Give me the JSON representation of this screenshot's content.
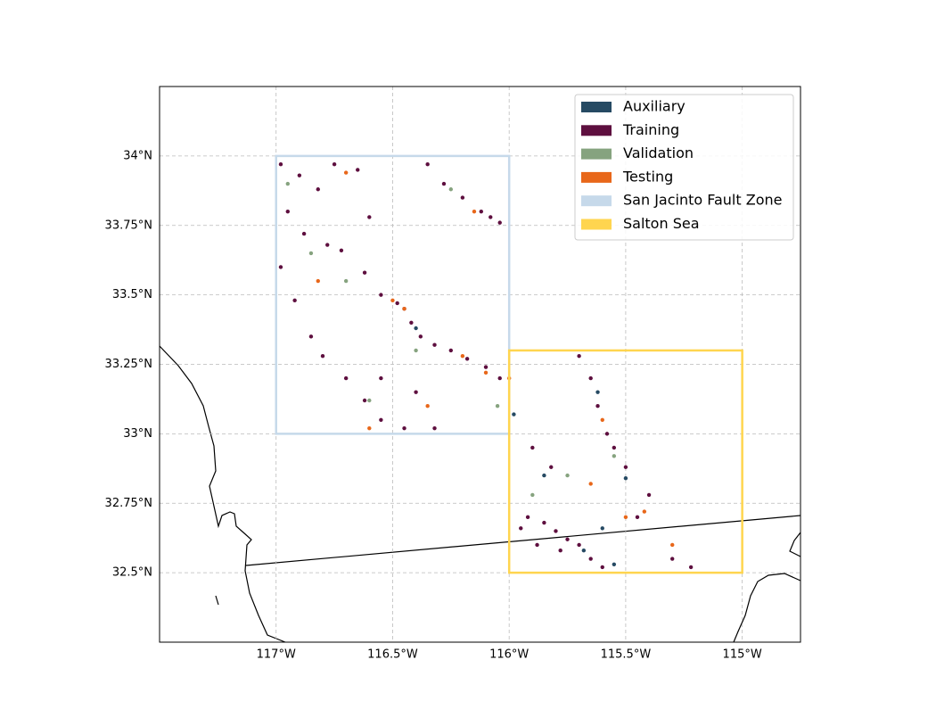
{
  "chart_data": {
    "type": "scatter",
    "xlim": [
      -117.5,
      -114.75
    ],
    "ylim": [
      32.25,
      34.25
    ],
    "grid": true,
    "legend": "upper right",
    "xticks": [
      {
        "value": -117,
        "label": "117°W"
      },
      {
        "value": -116.5,
        "label": "116.5°W"
      },
      {
        "value": -116,
        "label": "116°W"
      },
      {
        "value": -115.5,
        "label": "115.5°W"
      },
      {
        "value": -115,
        "label": "115°W"
      }
    ],
    "yticks": [
      {
        "value": 32.5,
        "label": "32.5°N"
      },
      {
        "value": 32.75,
        "label": "32.75°N"
      },
      {
        "value": 33,
        "label": "33°N"
      },
      {
        "value": 33.25,
        "label": "33.25°N"
      },
      {
        "value": 33.5,
        "label": "33.5°N"
      },
      {
        "value": 33.75,
        "label": "33.75°N"
      },
      {
        "value": 34,
        "label": "34°N"
      }
    ],
    "series": [
      {
        "name": "Auxiliary",
        "color": "#264a63",
        "x": [
          -115.98,
          -115.85,
          -115.68,
          -115.6,
          -115.5,
          -116.4,
          -115.62,
          -115.55
        ],
        "y": [
          33.07,
          32.85,
          32.58,
          32.66,
          32.84,
          33.38,
          33.15,
          32.53
        ]
      },
      {
        "name": "Training",
        "color": "#5e0f3f",
        "x": [
          -116.98,
          -116.9,
          -116.82,
          -116.75,
          -116.65,
          -116.95,
          -116.88,
          -116.78,
          -116.72,
          -116.62,
          -116.55,
          -116.48,
          -116.45,
          -116.42,
          -116.38,
          -116.32,
          -116.25,
          -116.18,
          -116.1,
          -116.04,
          -116.92,
          -116.85,
          -116.8,
          -116.7,
          -116.62,
          -116.55,
          -116.45,
          -116.32,
          -116.4,
          -116.55,
          -116.35,
          -116.28,
          -116.2,
          -116.12,
          -116.04,
          -116.08,
          -115.7,
          -115.65,
          -115.62,
          -115.58,
          -115.55,
          -115.5,
          -115.92,
          -115.85,
          -115.8,
          -115.75,
          -115.7,
          -115.65,
          -115.88,
          -115.95,
          -115.78,
          -115.6,
          -115.45,
          -115.4,
          -115.3,
          -115.22,
          -115.9,
          -115.82,
          -116.6,
          -116.98
        ],
        "y": [
          33.97,
          33.93,
          33.88,
          33.97,
          33.95,
          33.8,
          33.72,
          33.68,
          33.66,
          33.58,
          33.5,
          33.47,
          33.45,
          33.4,
          33.35,
          33.32,
          33.3,
          33.27,
          33.24,
          33.2,
          33.48,
          33.35,
          33.28,
          33.2,
          33.12,
          33.05,
          33.02,
          33.02,
          33.15,
          33.2,
          33.97,
          33.9,
          33.85,
          33.8,
          33.76,
          33.78,
          33.28,
          33.2,
          33.1,
          33.0,
          32.95,
          32.88,
          32.7,
          32.68,
          32.65,
          32.62,
          32.6,
          32.55,
          32.6,
          32.66,
          32.58,
          32.52,
          32.7,
          32.78,
          32.55,
          32.52,
          32.95,
          32.88,
          33.78,
          33.6
        ]
      },
      {
        "name": "Validation",
        "color": "#86a37f",
        "x": [
          -116.85,
          -116.7,
          -116.4,
          -116.25,
          -116.6,
          -115.75,
          -115.55,
          -115.9,
          -116.95,
          -116.05
        ],
        "y": [
          33.65,
          33.55,
          33.3,
          33.88,
          33.12,
          32.85,
          32.92,
          32.78,
          33.9,
          33.1
        ]
      },
      {
        "name": "Testing",
        "color": "#e8671a",
        "x": [
          -116.5,
          -116.45,
          -116.2,
          -116.1,
          -116.0,
          -116.7,
          -116.15,
          -115.6,
          -115.65,
          -115.5,
          -115.42,
          -115.3,
          -116.82,
          -116.35,
          -116.6
        ],
        "y": [
          33.48,
          33.45,
          33.28,
          33.22,
          33.2,
          33.94,
          33.8,
          33.05,
          32.82,
          32.7,
          32.72,
          32.6,
          33.55,
          33.1,
          33.02
        ]
      }
    ],
    "regions": [
      {
        "name": "San Jacinto Fault Zone",
        "color": "#c6d9ea",
        "lon": [
          -117,
          -116
        ],
        "lat": [
          33,
          34
        ]
      },
      {
        "name": "Salton Sea",
        "color": "#ffd54f",
        "lon": [
          -116,
          -115
        ],
        "lat": [
          32.5,
          33.3
        ]
      }
    ]
  }
}
